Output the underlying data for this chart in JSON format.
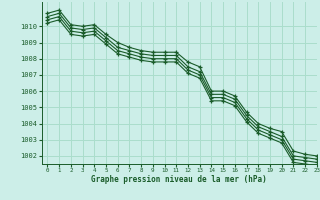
{
  "xlabel": "Graphe pression niveau de la mer (hPa)",
  "bg_color": "#cceee8",
  "grid_color": "#aaddcc",
  "line_color": "#1a5c2a",
  "marker": "+",
  "xlim": [
    -0.5,
    23
  ],
  "ylim": [
    1001.5,
    1011.5
  ],
  "yticks": [
    1002,
    1003,
    1004,
    1005,
    1006,
    1007,
    1008,
    1009,
    1010
  ],
  "xticks": [
    0,
    1,
    2,
    3,
    4,
    5,
    6,
    7,
    8,
    9,
    10,
    11,
    12,
    13,
    14,
    15,
    16,
    17,
    18,
    19,
    20,
    21,
    22,
    23
  ],
  "series": [
    [
      1010.8,
      1011.0,
      1010.1,
      1010.0,
      1010.1,
      1009.5,
      1009.0,
      1008.7,
      1008.5,
      1008.4,
      1008.4,
      1008.4,
      1007.8,
      1007.5,
      1006.0,
      1006.0,
      1005.7,
      1004.7,
      1004.0,
      1003.7,
      1003.5,
      1002.3,
      1002.1,
      1002.0
    ],
    [
      1010.6,
      1010.8,
      1009.9,
      1009.8,
      1009.9,
      1009.3,
      1008.7,
      1008.5,
      1008.3,
      1008.2,
      1008.2,
      1008.2,
      1007.5,
      1007.2,
      1005.8,
      1005.8,
      1005.5,
      1004.5,
      1003.8,
      1003.5,
      1003.2,
      1002.0,
      1001.9,
      1001.8
    ],
    [
      1010.4,
      1010.6,
      1009.7,
      1009.6,
      1009.7,
      1009.1,
      1008.5,
      1008.3,
      1008.1,
      1008.0,
      1008.0,
      1008.0,
      1007.3,
      1007.0,
      1005.6,
      1005.6,
      1005.3,
      1004.3,
      1003.6,
      1003.3,
      1003.0,
      1001.8,
      1001.7,
      1001.6
    ],
    [
      1010.2,
      1010.4,
      1009.5,
      1009.4,
      1009.5,
      1008.9,
      1008.3,
      1008.1,
      1007.9,
      1007.8,
      1007.8,
      1007.8,
      1007.1,
      1006.8,
      1005.4,
      1005.4,
      1005.1,
      1004.1,
      1003.4,
      1003.1,
      1002.8,
      1001.6,
      1001.5,
      1001.4
    ]
  ]
}
